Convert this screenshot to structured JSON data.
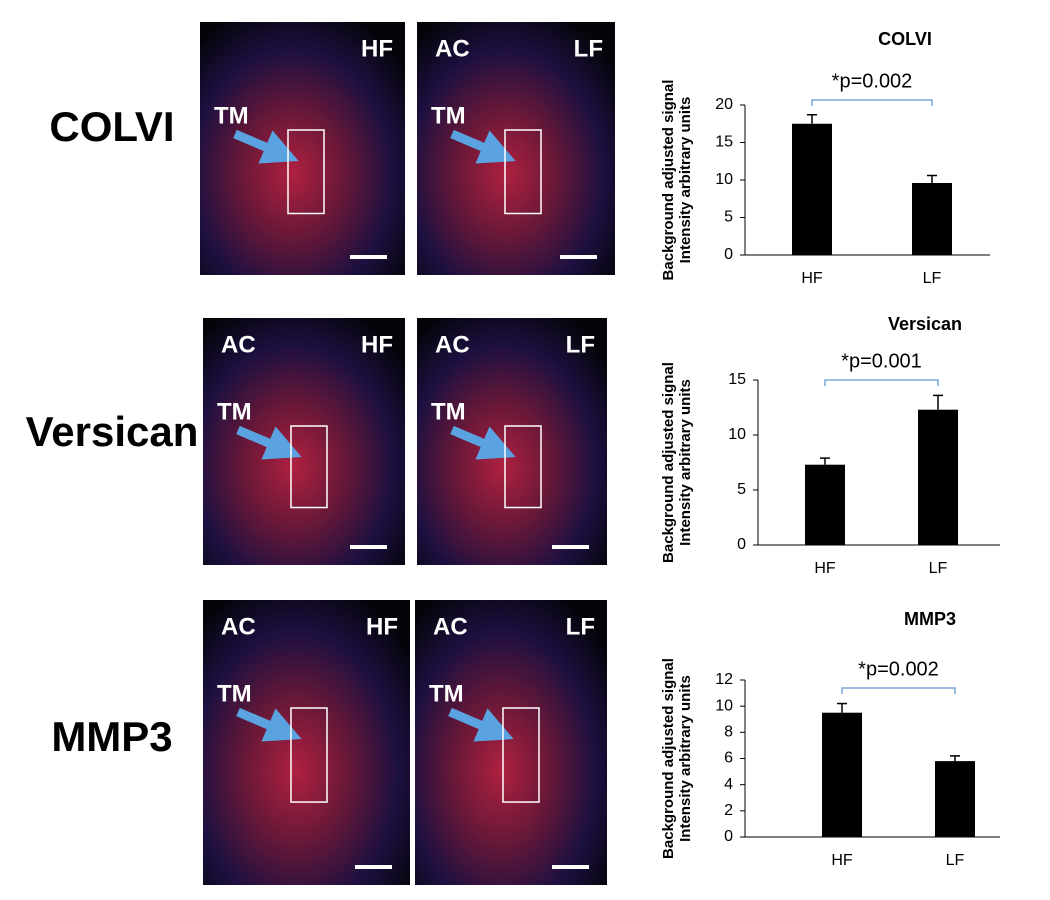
{
  "rows": [
    {
      "name": "COLVI",
      "images": [
        {
          "corner_labels": [
            "HF"
          ],
          "pointer": "TM"
        },
        {
          "corner_labels": [
            "AC",
            "LF"
          ],
          "pointer": "TM"
        }
      ]
    },
    {
      "name": "Versican",
      "images": [
        {
          "corner_labels": [
            "AC",
            "HF"
          ],
          "pointer": "TM"
        },
        {
          "corner_labels": [
            "AC",
            "LF"
          ],
          "pointer": "TM"
        }
      ]
    },
    {
      "name": "MMP3",
      "images": [
        {
          "corner_labels": [
            "AC",
            "HF"
          ],
          "pointer": "TM"
        },
        {
          "corner_labels": [
            "AC",
            "LF"
          ],
          "pointer": "TM"
        }
      ]
    }
  ],
  "chart_data": [
    {
      "type": "bar",
      "title": "COLVI",
      "ylabel": [
        "Background adjusted signal",
        "Intensity arbitrary units"
      ],
      "annotation": "*p=0.002",
      "categories": [
        "HF",
        "LF"
      ],
      "values": [
        17.5,
        9.6
      ],
      "errors": [
        1.2,
        1.0
      ],
      "color": "#000000",
      "ylim": [
        0,
        20
      ],
      "yticks": [
        0,
        5,
        10,
        15,
        20
      ]
    },
    {
      "type": "bar",
      "title": "Versican",
      "ylabel": [
        "Background adjusted signal",
        "Intensity arbitrary units"
      ],
      "annotation": "*p=0.001",
      "categories": [
        "HF",
        "LF"
      ],
      "values": [
        7.3,
        12.3
      ],
      "errors": [
        0.6,
        1.3
      ],
      "color": "#000000",
      "ylim": [
        0,
        15
      ],
      "yticks": [
        0,
        5,
        10,
        15
      ]
    },
    {
      "type": "bar",
      "title": "MMP3",
      "ylabel": [
        "Background adjusted signal",
        "Intensity arbitrary units"
      ],
      "annotation": "*p=0.002",
      "categories": [
        "HF",
        "LF"
      ],
      "values": [
        9.5,
        5.8
      ],
      "errors": [
        0.7,
        0.4
      ],
      "color": "#000000",
      "ylim": [
        0,
        12
      ],
      "yticks": [
        0,
        2,
        4,
        6,
        8,
        10,
        12
      ]
    }
  ]
}
